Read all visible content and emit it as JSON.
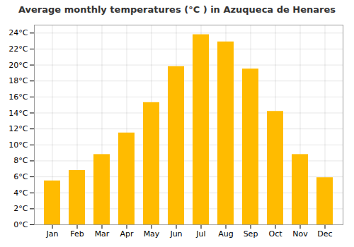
{
  "chart_data": {
    "type": "bar",
    "title": "Average monthly temperatures (°C ) in Azuqueca de Henares",
    "categories": [
      "Jan",
      "Feb",
      "Mar",
      "Apr",
      "May",
      "Jun",
      "Jul",
      "Aug",
      "Sep",
      "Oct",
      "Nov",
      "Dec"
    ],
    "values": [
      5.5,
      6.8,
      8.8,
      11.5,
      15.3,
      19.8,
      23.8,
      22.9,
      19.5,
      14.2,
      8.8,
      5.9
    ],
    "color": "#FFBB00",
    "ylim": [
      0,
      25
    ],
    "yticks": [
      {
        "value": 0,
        "label": "0°C"
      },
      {
        "value": 2,
        "label": "2°C"
      },
      {
        "value": 4,
        "label": "4°C"
      },
      {
        "value": 6,
        "label": "6°C"
      },
      {
        "value": 8,
        "label": "8°C"
      },
      {
        "value": 10,
        "label": "10°C"
      },
      {
        "value": 12,
        "label": "12°C"
      },
      {
        "value": 14,
        "label": "14°C"
      },
      {
        "value": 16,
        "label": "16°C"
      },
      {
        "value": 18,
        "label": "18°C"
      },
      {
        "value": 20,
        "label": "20°C"
      },
      {
        "value": 22,
        "label": "22°C"
      },
      {
        "value": 24,
        "label": "24°C"
      }
    ],
    "grid": true
  }
}
